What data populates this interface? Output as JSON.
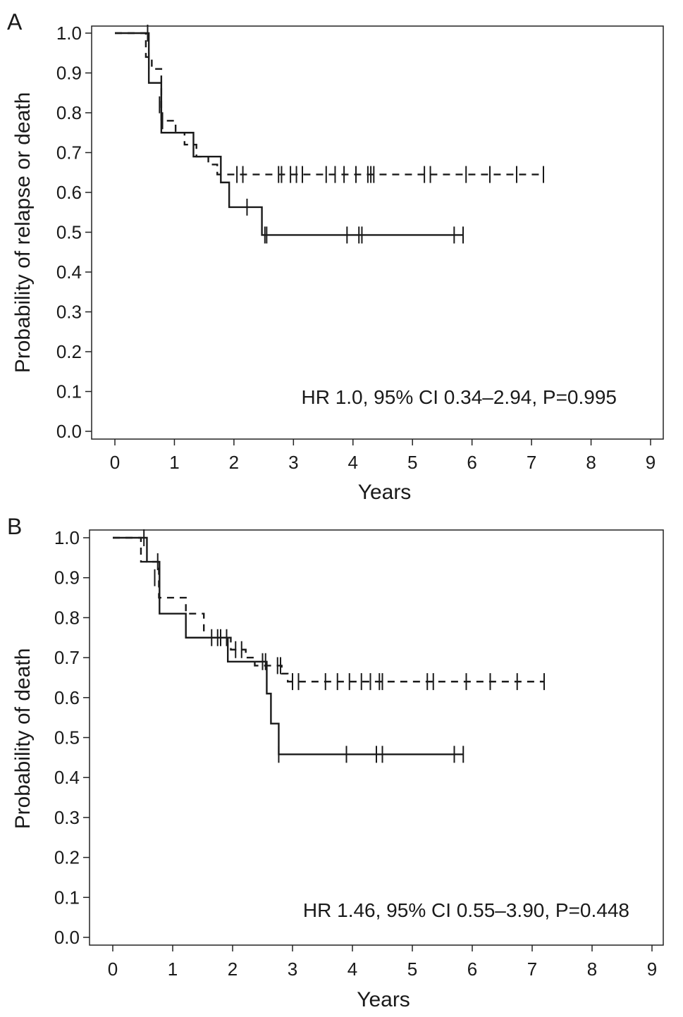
{
  "chart_data": [
    {
      "type": "line",
      "panel_label": "A",
      "xlabel": "Years",
      "ylabel": "Probability of relapse or death",
      "xlim": [
        0,
        9
      ],
      "ylim": [
        0,
        1
      ],
      "x_ticks": [
        "0",
        "1",
        "2",
        "3",
        "4",
        "5",
        "6",
        "7",
        "8",
        "9"
      ],
      "y_ticks": [
        "0.0",
        "0.1",
        "0.2",
        "0.3",
        "0.4",
        "0.5",
        "0.6",
        "0.7",
        "0.8",
        "0.9",
        "1.0"
      ],
      "annotation": "HR 1.0, 95% CI 0.34–2.94, P=0.995",
      "grid": false,
      "series": [
        {
          "style": "solid",
          "steps": [
            [
              0,
              1.0
            ],
            [
              0.55,
              1.0
            ],
            [
              0.57,
              0.875
            ],
            [
              0.75,
              0.875
            ],
            [
              0.78,
              0.75
            ],
            [
              1.3,
              0.75
            ],
            [
              1.32,
              0.69
            ],
            [
              1.75,
              0.69
            ],
            [
              1.78,
              0.625
            ],
            [
              1.9,
              0.625
            ],
            [
              1.92,
              0.563
            ],
            [
              2.45,
              0.563
            ],
            [
              2.47,
              0.493
            ],
            [
              5.85,
              0.493
            ]
          ],
          "censored": [
            [
              0.55,
              1.0
            ],
            [
              0.57,
              0.93
            ],
            [
              0.75,
              0.82
            ],
            [
              2.22,
              0.563
            ],
            [
              2.52,
              0.493
            ],
            [
              2.55,
              0.493
            ],
            [
              3.9,
              0.493
            ],
            [
              4.1,
              0.493
            ],
            [
              4.15,
              0.493
            ],
            [
              5.7,
              0.493
            ],
            [
              5.85,
              0.493
            ]
          ]
        },
        {
          "style": "dashed",
          "steps": [
            [
              0,
              1.0
            ],
            [
              0.5,
              1.0
            ],
            [
              0.52,
              0.94
            ],
            [
              0.6,
              0.94
            ],
            [
              0.62,
              0.91
            ],
            [
              0.75,
              0.91
            ],
            [
              0.78,
              0.78
            ],
            [
              1.0,
              0.78
            ],
            [
              1.02,
              0.75
            ],
            [
              1.15,
              0.75
            ],
            [
              1.17,
              0.72
            ],
            [
              1.35,
              0.72
            ],
            [
              1.37,
              0.69
            ],
            [
              1.55,
              0.69
            ],
            [
              1.57,
              0.67
            ],
            [
              1.7,
              0.67
            ],
            [
              1.72,
              0.645
            ],
            [
              7.2,
              0.645
            ]
          ],
          "censored": [
            [
              0.8,
              0.78
            ],
            [
              2.05,
              0.645
            ],
            [
              2.15,
              0.645
            ],
            [
              2.75,
              0.645
            ],
            [
              2.8,
              0.645
            ],
            [
              2.95,
              0.645
            ],
            [
              3.05,
              0.645
            ],
            [
              3.15,
              0.645
            ],
            [
              3.55,
              0.645
            ],
            [
              3.7,
              0.645
            ],
            [
              3.85,
              0.645
            ],
            [
              4.05,
              0.645
            ],
            [
              4.25,
              0.645
            ],
            [
              4.3,
              0.645
            ],
            [
              4.35,
              0.645
            ],
            [
              5.2,
              0.645
            ],
            [
              5.3,
              0.645
            ],
            [
              5.9,
              0.645
            ],
            [
              6.3,
              0.645
            ],
            [
              6.75,
              0.645
            ],
            [
              7.2,
              0.645
            ]
          ]
        }
      ]
    },
    {
      "type": "line",
      "panel_label": "B",
      "xlabel": "Years",
      "ylabel": "Probability of death",
      "xlim": [
        0,
        9
      ],
      "ylim": [
        0,
        1
      ],
      "x_ticks": [
        "0",
        "1",
        "2",
        "3",
        "4",
        "5",
        "6",
        "7",
        "8",
        "9"
      ],
      "y_ticks": [
        "0.0",
        "0.1",
        "0.2",
        "0.3",
        "0.4",
        "0.5",
        "0.6",
        "0.7",
        "0.8",
        "0.9",
        "1.0"
      ],
      "annotation": "HR 1.46, 95% CI 0.55–3.90, P=0.448",
      "grid": false,
      "series": [
        {
          "style": "solid",
          "steps": [
            [
              0,
              1.0
            ],
            [
              0.55,
              1.0
            ],
            [
              0.57,
              0.94
            ],
            [
              0.75,
              0.94
            ],
            [
              0.78,
              0.81
            ],
            [
              1.2,
              0.81
            ],
            [
              1.22,
              0.75
            ],
            [
              1.9,
              0.75
            ],
            [
              1.92,
              0.69
            ],
            [
              2.55,
              0.69
            ],
            [
              2.57,
              0.61
            ],
            [
              2.62,
              0.61
            ],
            [
              2.64,
              0.535
            ],
            [
              2.75,
              0.535
            ],
            [
              2.77,
              0.458
            ],
            [
              5.85,
              0.458
            ]
          ],
          "censored": [
            [
              0.52,
              1.0
            ],
            [
              0.75,
              0.94
            ],
            [
              1.9,
              0.75
            ],
            [
              2.55,
              0.69
            ],
            [
              2.77,
              0.458
            ],
            [
              3.9,
              0.458
            ],
            [
              4.4,
              0.458
            ],
            [
              4.5,
              0.458
            ],
            [
              5.7,
              0.458
            ],
            [
              5.85,
              0.458
            ]
          ]
        },
        {
          "style": "dashed",
          "steps": [
            [
              0,
              1.0
            ],
            [
              0.45,
              1.0
            ],
            [
              0.47,
              0.94
            ],
            [
              0.75,
              0.94
            ],
            [
              0.77,
              0.85
            ],
            [
              1.2,
              0.85
            ],
            [
              1.22,
              0.81
            ],
            [
              1.5,
              0.81
            ],
            [
              1.52,
              0.75
            ],
            [
              1.95,
              0.75
            ],
            [
              1.97,
              0.72
            ],
            [
              2.2,
              0.72
            ],
            [
              2.22,
              0.7
            ],
            [
              2.35,
              0.7
            ],
            [
              2.37,
              0.68
            ],
            [
              2.8,
              0.68
            ],
            [
              2.82,
              0.66
            ],
            [
              2.9,
              0.66
            ],
            [
              2.92,
              0.64
            ],
            [
              7.2,
              0.64
            ]
          ],
          "censored": [
            [
              0.7,
              0.9
            ],
            [
              1.65,
              0.75
            ],
            [
              1.75,
              0.75
            ],
            [
              1.8,
              0.75
            ],
            [
              2.05,
              0.72
            ],
            [
              2.15,
              0.72
            ],
            [
              2.5,
              0.69
            ],
            [
              2.75,
              0.68
            ],
            [
              2.8,
              0.68
            ],
            [
              3.0,
              0.64
            ],
            [
              3.1,
              0.64
            ],
            [
              3.55,
              0.64
            ],
            [
              3.75,
              0.64
            ],
            [
              3.95,
              0.64
            ],
            [
              4.15,
              0.64
            ],
            [
              4.3,
              0.64
            ],
            [
              4.45,
              0.64
            ],
            [
              4.5,
              0.64
            ],
            [
              5.25,
              0.64
            ],
            [
              5.35,
              0.64
            ],
            [
              5.9,
              0.64
            ],
            [
              6.3,
              0.64
            ],
            [
              6.75,
              0.64
            ],
            [
              7.2,
              0.64
            ]
          ]
        }
      ]
    }
  ]
}
